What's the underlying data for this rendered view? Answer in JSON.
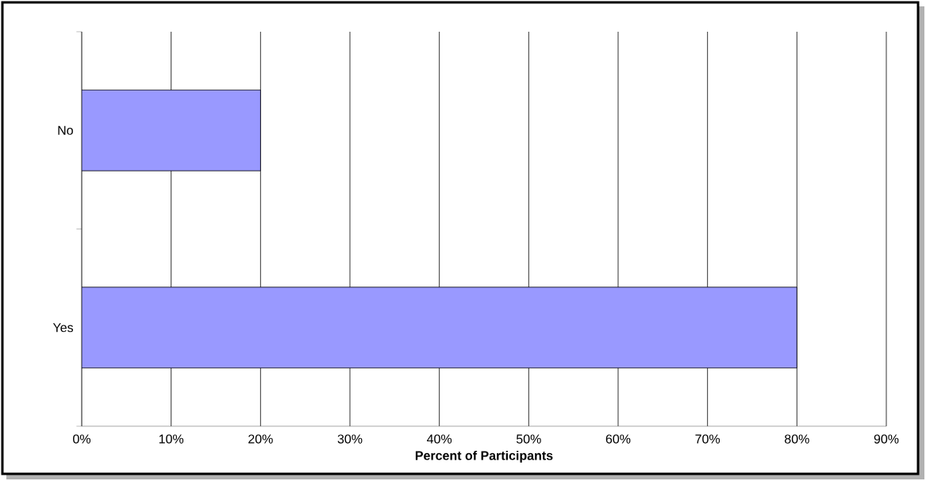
{
  "chart_data": {
    "type": "bar",
    "orientation": "horizontal",
    "xlabel": "Percent of Participants",
    "categories": [
      "No",
      "Yes"
    ],
    "values": [
      20,
      80
    ],
    "color": "#9999ff",
    "xlim": [
      0,
      90
    ],
    "xticks": [
      {
        "value": 0,
        "label": "0%"
      },
      {
        "value": 10,
        "label": "10%"
      },
      {
        "value": 20,
        "label": "20%"
      },
      {
        "value": 30,
        "label": "30%"
      },
      {
        "value": 40,
        "label": "40%"
      },
      {
        "value": 50,
        "label": "50%"
      },
      {
        "value": 60,
        "label": "60%"
      },
      {
        "value": 70,
        "label": "70%"
      },
      {
        "value": 80,
        "label": "80%"
      },
      {
        "value": 90,
        "label": "90%"
      }
    ],
    "grid": "x"
  }
}
